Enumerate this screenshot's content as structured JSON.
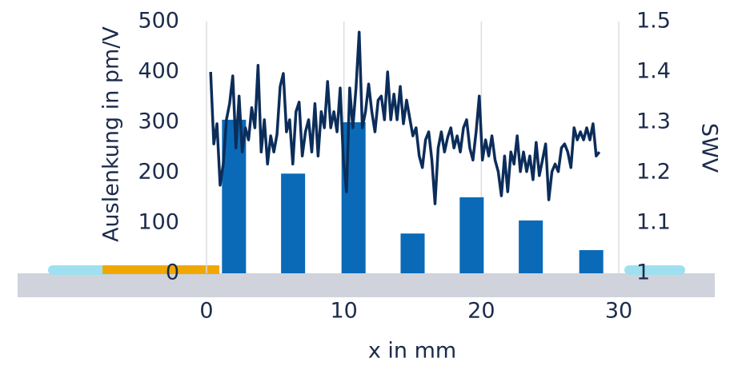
{
  "chart_data": {
    "type": "combo",
    "xlabel": "x in mm",
    "ylabel": "Auslenkung in pm/V",
    "y2label": "SWV",
    "xlim": [
      0,
      30
    ],
    "xticks": [
      0,
      10,
      20,
      30
    ],
    "ylim": [
      0,
      500
    ],
    "yticks": [
      0,
      100,
      200,
      300,
      400,
      500
    ],
    "y2lim": [
      1,
      1.5
    ],
    "y2ticks": [
      1,
      1.1,
      1.2,
      1.3,
      1.4,
      1.5
    ],
    "grid": true,
    "series": [
      {
        "type": "bar",
        "color": "#0a6ab8",
        "x": [
          2,
          6.3,
          10.7,
          15,
          19.3,
          23.6,
          28
        ],
        "values": [
          305,
          198,
          300,
          79,
          151,
          105,
          46
        ]
      },
      {
        "type": "line",
        "axis": "y2",
        "color": "#0c2d5a",
        "x": [
          0.3,
          0.53,
          0.76,
          0.99,
          1.22,
          1.45,
          1.68,
          1.91,
          2.14,
          2.37,
          2.6,
          2.83,
          3.06,
          3.29,
          3.52,
          3.75,
          3.98,
          4.21,
          4.44,
          4.67,
          4.9,
          5.13,
          5.36,
          5.59,
          5.82,
          6.05,
          6.28,
          6.51,
          6.74,
          6.97,
          7.2,
          7.43,
          7.66,
          7.89,
          8.12,
          8.35,
          8.58,
          8.81,
          9.04,
          9.27,
          9.5,
          9.73,
          9.96,
          10.19,
          10.42,
          10.65,
          10.88,
          11.11,
          11.34,
          11.57,
          11.8,
          12.03,
          12.26,
          12.49,
          12.72,
          12.95,
          13.18,
          13.41,
          13.64,
          13.87,
          14.1,
          14.33,
          14.56,
          14.79,
          15.02,
          15.25,
          15.48,
          15.71,
          15.94,
          16.17,
          16.4,
          16.63,
          16.86,
          17.09,
          17.32,
          17.55,
          17.78,
          18.01,
          18.24,
          18.47,
          18.7,
          18.93,
          19.16,
          19.39,
          19.62,
          19.85,
          20.08,
          20.31,
          20.54,
          20.77,
          21.0,
          21.23,
          21.46,
          21.69,
          21.92,
          22.15,
          22.38,
          22.61,
          22.84,
          23.07,
          23.3,
          23.53,
          23.76,
          23.99,
          24.22,
          24.45,
          24.68,
          24.91,
          25.14,
          25.37,
          25.6,
          25.83,
          26.06,
          26.29,
          26.52,
          26.75,
          26.98,
          27.21,
          27.44,
          27.67,
          27.9,
          28.13,
          28.36,
          28.59
        ],
        "values": [
          1.4,
          1.257,
          1.297,
          1.175,
          1.217,
          1.305,
          1.337,
          1.392,
          1.249,
          1.352,
          1.241,
          1.289,
          1.265,
          1.329,
          1.289,
          1.413,
          1.241,
          1.305,
          1.217,
          1.273,
          1.241,
          1.276,
          1.371,
          1.397,
          1.281,
          1.305,
          1.217,
          1.321,
          1.34,
          1.233,
          1.281,
          1.305,
          1.241,
          1.337,
          1.233,
          1.321,
          1.289,
          1.381,
          1.289,
          1.321,
          1.281,
          1.368,
          1.225,
          1.162,
          1.368,
          1.289,
          1.368,
          1.479,
          1.289,
          1.321,
          1.376,
          1.321,
          1.281,
          1.344,
          1.352,
          1.305,
          1.4,
          1.305,
          1.356,
          1.305,
          1.371,
          1.297,
          1.344,
          1.308,
          1.273,
          1.289,
          1.233,
          1.21,
          1.265,
          1.281,
          1.225,
          1.138,
          1.249,
          1.281,
          1.241,
          1.27,
          1.289,
          1.249,
          1.273,
          1.241,
          1.289,
          1.305,
          1.249,
          1.225,
          1.281,
          1.352,
          1.225,
          1.265,
          1.233,
          1.273,
          1.225,
          1.202,
          1.154,
          1.233,
          1.162,
          1.241,
          1.217,
          1.273,
          1.202,
          1.241,
          1.202,
          1.233,
          1.186,
          1.26,
          1.194,
          1.225,
          1.257,
          1.146,
          1.202,
          1.217,
          1.202,
          1.249,
          1.257,
          1.241,
          1.21,
          1.289,
          1.265,
          1.281,
          1.265,
          1.289,
          1.265,
          1.297,
          1.233,
          1.241
        ]
      }
    ]
  }
}
